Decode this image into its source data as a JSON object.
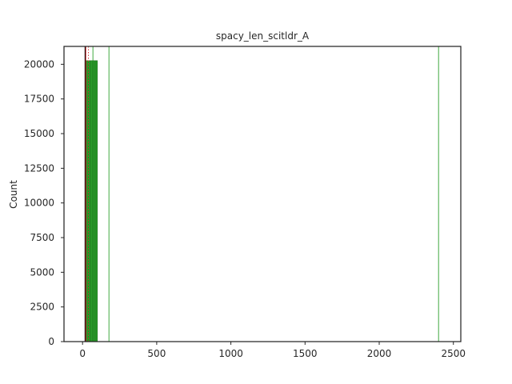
{
  "chart_data": {
    "type": "bar",
    "title": "spacy_len_scitldr_A",
    "xlabel": "",
    "ylabel": "Count",
    "xlim": [
      -125,
      2550
    ],
    "ylim": [
      0,
      21290
    ],
    "x_ticks": [
      0,
      500,
      1000,
      1500,
      2000,
      2500
    ],
    "y_ticks": [
      0,
      2500,
      5000,
      7500,
      10000,
      12500,
      15000,
      17500,
      20000
    ],
    "grid": false,
    "legend": "none",
    "colors": {
      "bar_fill": "#2ca02c",
      "bar_edge": "#1a6b1a",
      "green_line": "#2ca02c",
      "red_line": "#d62728",
      "black_line": "#000000",
      "axes": "#262626"
    },
    "bins": [
      {
        "x0": 18,
        "x1": 30,
        "count": 20260
      },
      {
        "x0": 30,
        "x1": 42,
        "count": 20260
      },
      {
        "x0": 42,
        "x1": 54,
        "count": 20260
      },
      {
        "x0": 54,
        "x1": 66,
        "count": 20260
      },
      {
        "x0": 66,
        "x1": 78,
        "count": 20260
      },
      {
        "x0": 78,
        "x1": 90,
        "count": 20260
      },
      {
        "x0": 90,
        "x1": 100,
        "count": 20260
      }
    ],
    "vertical_lines": [
      {
        "x": 18,
        "color": "black",
        "style": "solid"
      },
      {
        "x": 22,
        "color": "red",
        "style": "solid"
      },
      {
        "x": 40,
        "color": "red",
        "style": "dotted"
      },
      {
        "x": 70,
        "color": "green",
        "style": "solid"
      },
      {
        "x": 178,
        "color": "green",
        "style": "solid"
      },
      {
        "x": 2400,
        "color": "green",
        "style": "solid"
      }
    ]
  }
}
